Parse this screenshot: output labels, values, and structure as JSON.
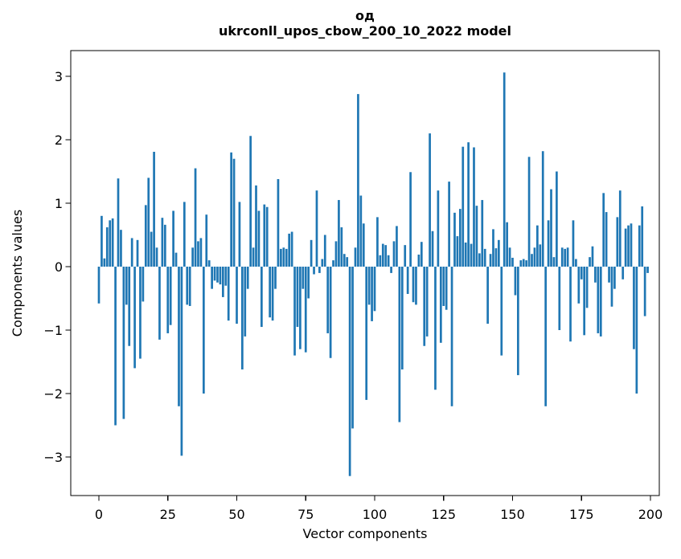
{
  "figure": {
    "background": "#ffffff"
  },
  "chart_data": {
    "type": "bar",
    "title": "од",
    "subtitle": "ukrconll_upos_cbow_200_10_2022 model",
    "xlabel": "Vector components",
    "ylabel": "Components values",
    "x_ticks": [
      0,
      25,
      50,
      75,
      100,
      125,
      150,
      175,
      200
    ],
    "y_ticks": [
      3,
      2,
      1,
      0,
      -1,
      -2,
      -3
    ],
    "xlim": [
      -10.2,
      203.2
    ],
    "ylim": [
      -3.62,
      3.38
    ],
    "grid": false,
    "legend": false,
    "bar_color": "#1f77b4",
    "axis_color": "#000000",
    "n_bars": 200,
    "values": [
      -0.58,
      0.8,
      0.13,
      0.62,
      0.73,
      0.76,
      -2.5,
      1.39,
      0.58,
      -2.4,
      -0.6,
      -1.25,
      0.45,
      -1.6,
      0.42,
      -1.45,
      -0.55,
      0.97,
      1.4,
      0.55,
      1.81,
      0.3,
      -1.15,
      0.77,
      0.66,
      -1.05,
      -0.92,
      0.88,
      0.22,
      -2.2,
      -2.98,
      1.02,
      -0.6,
      -0.62,
      0.3,
      1.55,
      0.4,
      0.45,
      -2.0,
      0.82,
      0.1,
      -0.35,
      -0.22,
      -0.25,
      -0.28,
      -0.48,
      -0.3,
      -0.85,
      1.8,
      1.7,
      -0.9,
      1.02,
      -1.62,
      -1.1,
      -0.35,
      2.06,
      0.3,
      1.28,
      0.88,
      -0.95,
      0.98,
      0.94,
      -0.8,
      -0.85,
      -0.35,
      1.38,
      0.28,
      0.3,
      0.28,
      0.52,
      0.55,
      -1.4,
      -0.95,
      -1.3,
      -0.35,
      -1.35,
      -0.5,
      0.42,
      -0.12,
      1.2,
      -0.1,
      0.12,
      0.5,
      -1.05,
      -1.44,
      0.1,
      0.4,
      1.05,
      0.62,
      0.2,
      0.15,
      -3.3,
      -2.55,
      0.3,
      2.72,
      1.12,
      0.68,
      -2.1,
      -0.6,
      -0.86,
      -0.7,
      0.78,
      0.18,
      0.36,
      0.34,
      0.18,
      -0.1,
      0.4,
      0.64,
      -2.45,
      -1.62,
      0.34,
      -0.43,
      1.49,
      -0.56,
      -0.6,
      0.19,
      0.39,
      -1.25,
      -1.1,
      2.1,
      0.56,
      -1.94,
      1.2,
      -1.2,
      -0.62,
      -0.68,
      1.34,
      -2.2,
      0.85,
      0.48,
      0.91,
      1.89,
      0.38,
      1.96,
      0.36,
      1.88,
      0.96,
      0.21,
      1.05,
      0.28,
      -0.9,
      0.2,
      0.59,
      0.29,
      0.42,
      -1.4,
      3.06,
      0.7,
      0.3,
      0.14,
      -0.45,
      -1.71,
      0.1,
      0.12,
      0.1,
      1.73,
      0.2,
      0.3,
      0.65,
      0.35,
      1.82,
      -2.2,
      0.73,
      1.22,
      0.15,
      1.5,
      -1.0,
      0.3,
      0.28,
      0.3,
      -1.18,
      0.73,
      0.12,
      -0.58,
      -0.2,
      -1.08,
      -0.65,
      0.15,
      0.32,
      -0.25,
      -1.05,
      -1.1,
      1.16,
      0.86,
      -0.25,
      -0.63,
      -0.35,
      0.78,
      1.2,
      -0.2,
      0.6,
      0.65,
      0.68,
      -1.3,
      -2.0,
      0.65,
      0.95,
      -0.78,
      -0.1
    ]
  }
}
